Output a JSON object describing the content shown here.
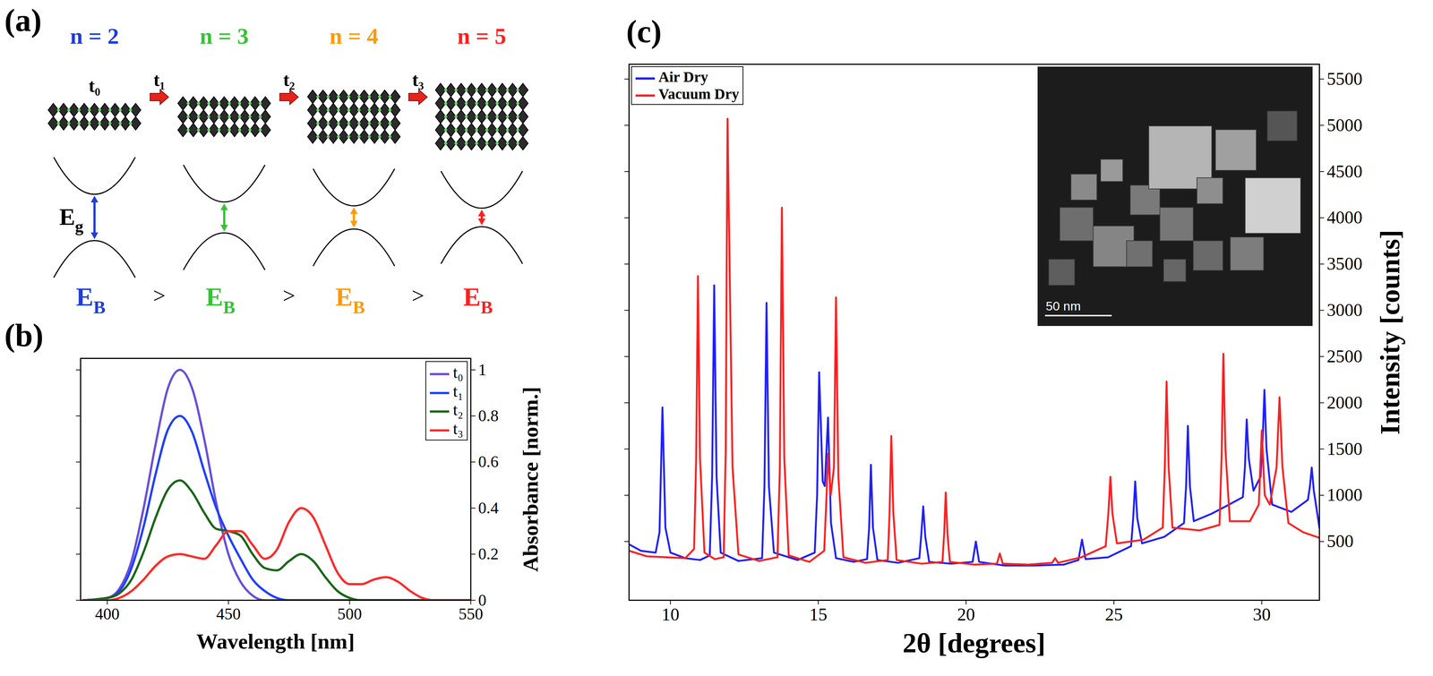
{
  "diagram": {
    "panel": "(a)",
    "nodes": [
      {
        "label": "n = 2",
        "color": "#1f3ddb",
        "layers": 2
      },
      {
        "label": "n = 3",
        "color": "#33c433",
        "layers": 3
      },
      {
        "label": "n = 4",
        "color": "#ff9a00",
        "layers": 4
      },
      {
        "label": "n = 5",
        "color": "#ff1f1f",
        "layers": 5
      }
    ],
    "time_labels": [
      "t₀",
      "t₁",
      "t₂",
      "t₃"
    ],
    "gap_label": {
      "text": "E",
      "sub": "g"
    },
    "binding_label": {
      "text": "E",
      "sub": "B"
    },
    "comparison": ">"
  },
  "chart_data": [
    {
      "panel": "(b)",
      "type": "line",
      "x_label": "Wavelength [nm]",
      "y_label": "Absorbance [norm.]",
      "x": [
        390,
        400,
        405,
        410,
        415,
        420,
        425,
        430,
        435,
        440,
        445,
        450,
        455,
        460,
        465,
        470,
        475,
        480,
        485,
        490,
        495,
        500,
        505,
        510,
        515,
        520,
        525,
        530,
        535,
        540,
        550
      ],
      "series": [
        {
          "name": "t₀",
          "color": "#6a4fdc",
          "values": [
            0,
            0.01,
            0.05,
            0.17,
            0.4,
            0.68,
            0.92,
            1.0,
            0.92,
            0.7,
            0.42,
            0.2,
            0.08,
            0.02,
            0,
            0,
            0,
            0,
            0,
            0,
            0,
            0,
            0,
            0,
            0,
            0,
            0,
            0,
            0,
            0,
            0
          ]
        },
        {
          "name": "t₁",
          "color": "#2040ff",
          "values": [
            0,
            0.01,
            0.04,
            0.14,
            0.32,
            0.55,
            0.74,
            0.8,
            0.73,
            0.56,
            0.4,
            0.28,
            0.18,
            0.09,
            0.04,
            0.01,
            0,
            0,
            0,
            0,
            0,
            0,
            0,
            0,
            0,
            0,
            0,
            0,
            0,
            0,
            0
          ]
        },
        {
          "name": "t₂",
          "color": "#1a661a",
          "values": [
            0,
            0.01,
            0.03,
            0.09,
            0.21,
            0.36,
            0.48,
            0.52,
            0.47,
            0.38,
            0.31,
            0.3,
            0.28,
            0.2,
            0.14,
            0.13,
            0.17,
            0.2,
            0.17,
            0.1,
            0.04,
            0.01,
            0,
            0,
            0,
            0,
            0,
            0,
            0,
            0,
            0
          ]
        },
        {
          "name": "t₃",
          "color": "#ff2a2a",
          "values": [
            0,
            0,
            0.01,
            0.04,
            0.09,
            0.15,
            0.19,
            0.2,
            0.19,
            0.18,
            0.24,
            0.3,
            0.3,
            0.24,
            0.18,
            0.22,
            0.34,
            0.4,
            0.36,
            0.24,
            0.12,
            0.07,
            0.07,
            0.09,
            0.1,
            0.08,
            0.04,
            0.01,
            0,
            0,
            0
          ]
        }
      ],
      "xlim": [
        389,
        550
      ],
      "xticks": [
        400,
        450,
        500,
        550
      ],
      "ylim": [
        0,
        1.05
      ],
      "yticks": [
        0,
        0.2,
        0.4,
        0.6,
        0.8,
        1
      ],
      "legend": "top-right"
    },
    {
      "panel": "(c)",
      "type": "line",
      "x_label": "2θ [degrees]",
      "y_label": "Intensity [counts]",
      "series": [
        {
          "name": "Air Dry",
          "color": "#2020ff",
          "x": [
            8.6,
            9.0,
            9.5,
            9.63,
            9.73,
            9.83,
            10.0,
            10.5,
            11.0,
            11.33,
            11.41,
            11.48,
            11.56,
            11.7,
            12.3,
            13.1,
            13.18,
            13.25,
            13.33,
            13.5,
            14.3,
            14.88,
            14.96,
            15.03,
            15.15,
            15.22,
            15.33,
            15.43,
            15.6,
            16.2,
            16.65,
            16.72,
            16.78,
            16.85,
            17.0,
            17.7,
            18.42,
            18.49,
            18.55,
            18.62,
            18.75,
            19.5,
            20.22,
            20.33,
            20.44,
            21.3,
            22.3,
            23.3,
            23.8,
            23.92,
            24.04,
            24.8,
            25.58,
            25.65,
            25.72,
            25.79,
            25.95,
            26.7,
            27.37,
            27.44,
            27.5,
            27.57,
            27.7,
            28.3,
            28.9,
            29.36,
            29.43,
            29.49,
            29.56,
            29.72,
            29.96,
            30.03,
            30.09,
            30.16,
            30.35,
            31.0,
            31.56,
            31.63,
            31.69,
            31.76,
            31.95
          ],
          "values": [
            470,
            400,
            380,
            600,
            1950,
            650,
            380,
            320,
            300,
            350,
            1200,
            3270,
            1200,
            380,
            290,
            320,
            1100,
            3080,
            1100,
            380,
            300,
            380,
            1000,
            2330,
            1150,
            1100,
            1840,
            700,
            320,
            280,
            310,
            650,
            1330,
            650,
            300,
            270,
            320,
            600,
            880,
            550,
            280,
            260,
            280,
            500,
            280,
            240,
            240,
            250,
            300,
            520,
            310,
            330,
            450,
            750,
            1150,
            750,
            480,
            550,
            700,
            1100,
            1750,
            1100,
            720,
            800,
            900,
            980,
            1300,
            1820,
            1400,
            1050,
            1200,
            1600,
            2140,
            1500,
            900,
            820,
            950,
            1100,
            1300,
            1050,
            650
          ]
        },
        {
          "name": "Vacuum Dry",
          "color": "#ff2020",
          "x": [
            8.6,
            9.2,
            9.9,
            10.5,
            10.8,
            10.87,
            10.93,
            11.0,
            11.15,
            11.5,
            11.8,
            11.87,
            11.93,
            12.0,
            12.1,
            12.3,
            13.0,
            13.62,
            13.7,
            13.77,
            13.85,
            14.0,
            14.7,
            15.2,
            15.28,
            15.33,
            15.42,
            15.53,
            15.6,
            15.68,
            15.85,
            16.6,
            17.35,
            17.41,
            17.47,
            17.54,
            17.65,
            18.5,
            19.2,
            19.26,
            19.31,
            19.37,
            19.45,
            20.3,
            21.04,
            21.14,
            21.24,
            22.1,
            22.91,
            23.01,
            23.11,
            23.9,
            24.72,
            24.81,
            24.88,
            24.95,
            25.1,
            26.0,
            26.65,
            26.72,
            26.78,
            26.85,
            26.98,
            27.9,
            28.57,
            28.64,
            28.7,
            28.77,
            28.92,
            29.6,
            29.9,
            30.0,
            30.1,
            30.27,
            30.5,
            30.6,
            30.7,
            30.9,
            31.4,
            31.95
          ],
          "values": [
            400,
            340,
            330,
            320,
            420,
            1400,
            3370,
            1400,
            380,
            310,
            330,
            1500,
            5070,
            3500,
            1300,
            360,
            290,
            330,
            1300,
            4110,
            1400,
            350,
            280,
            400,
            1000,
            1450,
            1000,
            1300,
            3140,
            1200,
            330,
            270,
            300,
            800,
            1640,
            800,
            300,
            260,
            280,
            600,
            1030,
            580,
            280,
            250,
            260,
            370,
            260,
            250,
            270,
            320,
            270,
            330,
            450,
            800,
            1200,
            800,
            480,
            520,
            650,
            1300,
            2230,
            1300,
            650,
            620,
            680,
            1400,
            2530,
            1500,
            720,
            720,
            900,
            1700,
            1000,
            900,
            1300,
            2060,
            1300,
            700,
            600,
            540
          ]
        }
      ],
      "xlim": [
        8.6,
        31.95
      ],
      "xticks": [
        10,
        15,
        20,
        25,
        30
      ],
      "ylim": [
        -135,
        5660
      ],
      "yticks": [
        500,
        1000,
        1500,
        2000,
        2500,
        3000,
        3500,
        4000,
        4500,
        5000,
        5500
      ],
      "legend": "top-left",
      "inset": {
        "scale_bar": "50 nm"
      }
    }
  ]
}
